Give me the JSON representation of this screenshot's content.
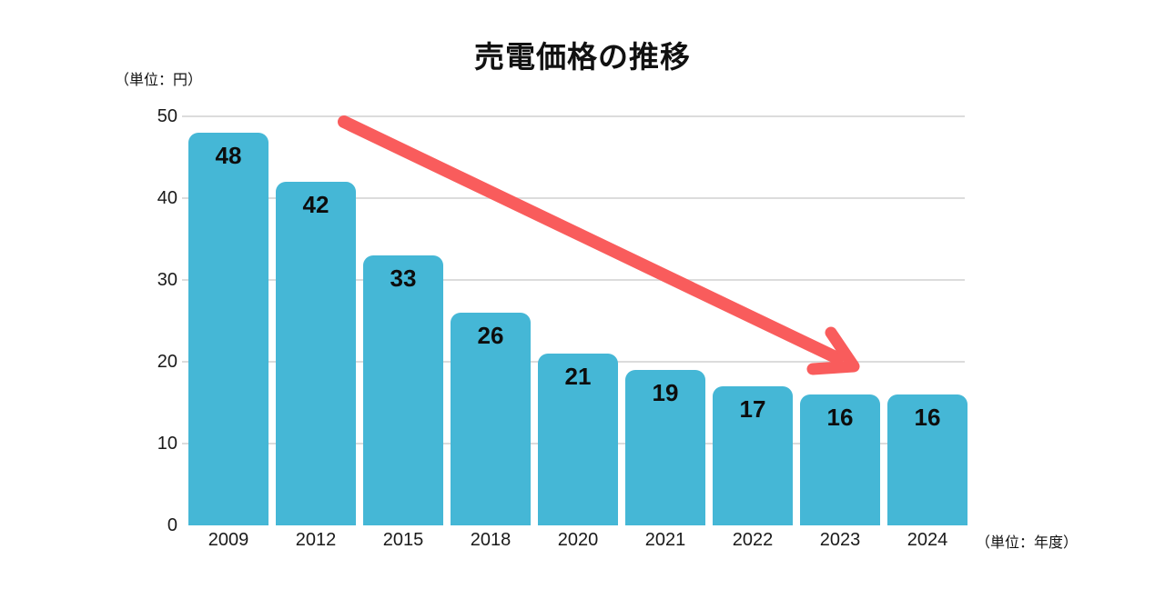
{
  "chart_data": {
    "type": "bar",
    "title": "売電価格の推移",
    "y_axis_unit": "（単位：円）",
    "x_axis_unit": "（単位：年度）",
    "categories": [
      "2009",
      "2012",
      "2015",
      "2018",
      "2020",
      "2021",
      "2022",
      "2023",
      "2024"
    ],
    "values": [
      48,
      42,
      33,
      26,
      21,
      19,
      17,
      16,
      16
    ],
    "y_ticks": [
      0,
      10,
      20,
      30,
      40,
      50
    ],
    "ylim": [
      0,
      50
    ],
    "grid": "horizontal gridlines at 10,20,30,40,50; no baseline at 0",
    "legend": "none",
    "annotation": "red downward trend arrow from upper-left to lower-right",
    "colors": {
      "bar": "#45b7d6",
      "arrow": "#f95c5c",
      "grid": "#dcdcdc",
      "text": "#111111",
      "background": "#ffffff"
    }
  }
}
